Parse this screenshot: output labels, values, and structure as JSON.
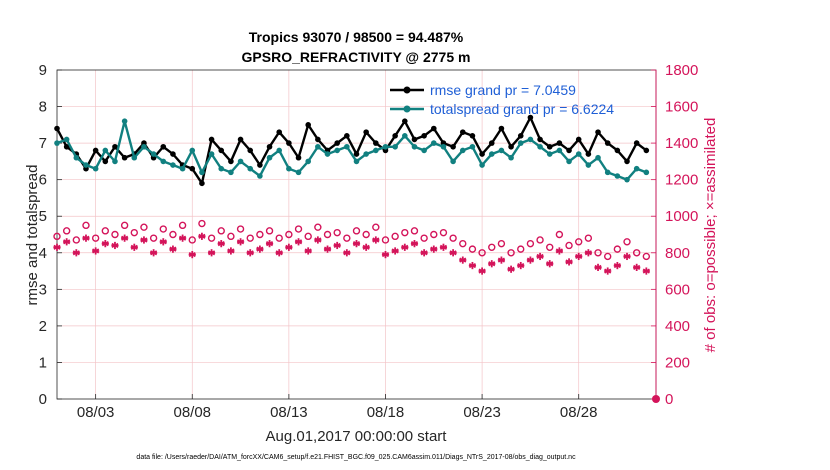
{
  "chart_data": {
    "type": "line",
    "title_line1": "Tropics 93070 / 98500 = 94.487%",
    "title_line2": "GPSRO_REFRACTIVITY @ 2775 m",
    "xlabel": "Aug.01,2017 00:00:00 start",
    "ylabel_left": "rmse and totalspread",
    "ylabel_right": "# of obs: o=possible; ×=assimilated",
    "footnote": "data file: /Users/raeder/DAI/ATM_forcXX/CAM6_setup/f.e21.FHIST_BGC.f09_025.CAM6assim.011/Diags_NTrS_2017-08/obs_diag_output.nc",
    "x_ticks": [
      "08/03",
      "08/08",
      "08/13",
      "08/18",
      "08/23",
      "08/28"
    ],
    "x_tick_days": [
      3,
      8,
      13,
      18,
      23,
      28
    ],
    "xlim": [
      1,
      32
    ],
    "ylim_left": [
      0,
      9
    ],
    "yticks_left": [
      "0",
      "1",
      "2",
      "3",
      "4",
      "5",
      "6",
      "7",
      "8",
      "9"
    ],
    "ylim_right": [
      0,
      1800
    ],
    "yticks_right": [
      "0",
      "200",
      "400",
      "600",
      "800",
      "1000",
      "1200",
      "1400",
      "1600",
      "1800"
    ],
    "x_days": [
      1.0,
      1.5,
      2.0,
      2.5,
      3.0,
      3.5,
      4.0,
      4.5,
      5.0,
      5.5,
      6.0,
      6.5,
      7.0,
      7.5,
      8.0,
      8.5,
      9.0,
      9.5,
      10.0,
      10.5,
      11.0,
      11.5,
      12.0,
      12.5,
      13.0,
      13.5,
      14.0,
      14.5,
      15.0,
      15.5,
      16.0,
      16.5,
      17.0,
      17.5,
      18.0,
      18.5,
      19.0,
      19.5,
      20.0,
      20.5,
      21.0,
      21.5,
      22.0,
      22.5,
      23.0,
      23.5,
      24.0,
      24.5,
      25.0,
      25.5,
      26.0,
      26.5,
      27.0,
      27.5,
      28.0,
      28.5,
      29.0,
      29.5,
      30.0,
      30.5,
      31.0,
      31.5
    ],
    "series": [
      {
        "name": "rmse",
        "legend": "rmse grand pr = 7.0459",
        "color": "#000000",
        "values": [
          7.4,
          6.9,
          6.7,
          6.3,
          6.8,
          6.5,
          6.9,
          6.6,
          6.7,
          7.0,
          6.6,
          6.9,
          6.7,
          6.4,
          6.3,
          5.9,
          7.1,
          6.8,
          6.5,
          7.1,
          6.8,
          6.4,
          6.9,
          7.3,
          7.0,
          6.6,
          7.5,
          7.1,
          6.8,
          7.0,
          7.2,
          6.7,
          7.3,
          7.0,
          6.8,
          7.2,
          7.6,
          7.1,
          7.2,
          7.4,
          7.0,
          6.9,
          7.3,
          7.2,
          6.7,
          7.0,
          7.4,
          6.9,
          7.2,
          7.7,
          7.1,
          6.9,
          7.0,
          6.8,
          7.1,
          6.7,
          7.3,
          7.0,
          6.8,
          6.5,
          7.0,
          6.8
        ]
      },
      {
        "name": "totalspread",
        "legend": "totalspread grand pr = 6.6224",
        "color": "#118080",
        "values": [
          7.0,
          7.1,
          6.6,
          6.4,
          6.3,
          6.8,
          6.5,
          7.6,
          6.6,
          6.9,
          6.7,
          6.5,
          6.4,
          6.3,
          6.8,
          6.2,
          6.7,
          6.3,
          6.2,
          6.5,
          6.3,
          6.1,
          6.6,
          6.8,
          6.3,
          6.2,
          6.5,
          6.9,
          6.7,
          6.8,
          6.9,
          6.5,
          6.7,
          6.8,
          6.9,
          6.9,
          7.2,
          6.9,
          6.8,
          7.0,
          6.9,
          6.5,
          6.8,
          6.9,
          6.4,
          6.7,
          6.8,
          6.6,
          7.0,
          7.1,
          6.9,
          6.7,
          6.8,
          6.5,
          6.7,
          6.4,
          6.6,
          6.2,
          6.1,
          6.0,
          6.3,
          6.2
        ]
      },
      {
        "name": "possible",
        "marker": "o",
        "color": "#d4145a",
        "values": [
          890,
          920,
          870,
          950,
          880,
          920,
          900,
          950,
          910,
          940,
          880,
          930,
          900,
          950,
          870,
          960,
          880,
          920,
          890,
          930,
          880,
          900,
          920,
          880,
          900,
          930,
          890,
          940,
          900,
          910,
          880,
          920,
          900,
          940,
          870,
          890,
          910,
          920,
          880,
          900,
          910,
          880,
          850,
          820,
          800,
          830,
          850,
          800,
          820,
          850,
          870,
          830,
          900,
          840,
          860,
          880,
          800,
          780,
          820,
          860,
          800,
          780
        ]
      },
      {
        "name": "assimilated",
        "marker": "*",
        "color": "#d4145a",
        "values": [
          830,
          860,
          800,
          880,
          810,
          850,
          840,
          880,
          830,
          870,
          800,
          860,
          820,
          880,
          790,
          890,
          800,
          850,
          810,
          860,
          800,
          820,
          850,
          800,
          830,
          860,
          810,
          870,
          820,
          840,
          800,
          850,
          830,
          870,
          790,
          810,
          830,
          850,
          800,
          820,
          830,
          800,
          760,
          730,
          700,
          740,
          760,
          710,
          730,
          760,
          780,
          740,
          810,
          750,
          780,
          800,
          720,
          700,
          730,
          780,
          720,
          700
        ]
      }
    ]
  }
}
